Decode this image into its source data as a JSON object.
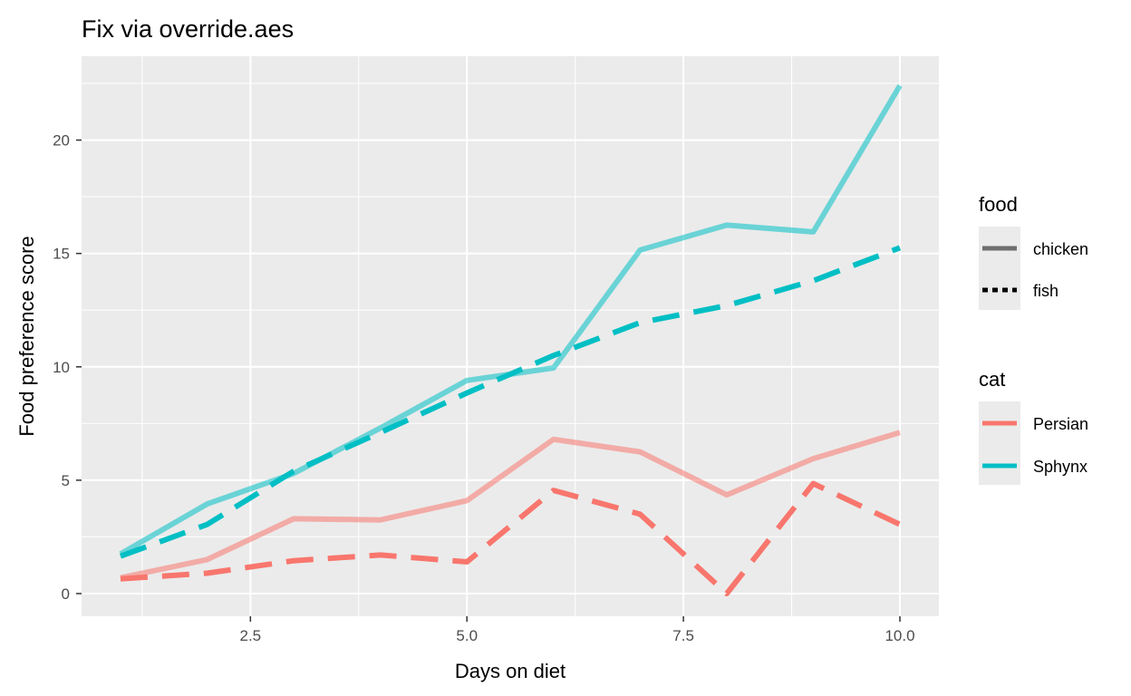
{
  "chart_data": {
    "type": "line",
    "title": "Fix via override.aes",
    "xlabel": "Days on diet",
    "ylabel": "Food preference score",
    "xlim": [
      0.55,
      10.45
    ],
    "ylim": [
      -1.0,
      23.7
    ],
    "x_ticks": [
      2.5,
      5.0,
      7.5,
      10.0
    ],
    "x_tick_labels": [
      "2.5",
      "5.0",
      "7.5",
      "10.0"
    ],
    "y_ticks": [
      0,
      5,
      10,
      15,
      20
    ],
    "y_tick_labels": [
      "0",
      "5",
      "10",
      "15",
      "20"
    ],
    "grid": true,
    "legend_position": "right",
    "x": [
      1,
      2,
      3,
      4,
      5,
      6,
      7,
      8,
      9,
      10
    ],
    "series": [
      {
        "cat": "Persian",
        "food": "chicken",
        "color": "#F8766D",
        "values": [
          0.7,
          1.5,
          3.3,
          3.25,
          4.1,
          6.8,
          6.25,
          4.35,
          5.95,
          7.1
        ]
      },
      {
        "cat": "Persian",
        "food": "fish",
        "color": "#F8766D",
        "values": [
          0.65,
          0.9,
          1.45,
          1.7,
          1.4,
          4.55,
          3.5,
          0.0,
          4.85,
          3.05
        ]
      },
      {
        "cat": "Sphynx",
        "food": "chicken",
        "color": "#00BFC4",
        "values": [
          1.75,
          3.95,
          5.3,
          7.3,
          9.4,
          9.95,
          15.15,
          16.25,
          15.95,
          22.4
        ]
      },
      {
        "cat": "Sphynx",
        "food": "fish",
        "color": "#00BFC4",
        "values": [
          1.65,
          3.05,
          5.4,
          7.1,
          8.85,
          10.5,
          11.95,
          12.7,
          13.8,
          15.25
        ]
      }
    ],
    "legends": [
      {
        "title": "food",
        "items": [
          {
            "label": "chicken",
            "linetype": "solid"
          },
          {
            "label": "fish",
            "linetype": "dotted"
          }
        ]
      },
      {
        "title": "cat",
        "items": [
          {
            "label": "Persian",
            "color": "#F8766D"
          },
          {
            "label": "Sphynx",
            "color": "#00BFC4"
          }
        ]
      }
    ]
  }
}
